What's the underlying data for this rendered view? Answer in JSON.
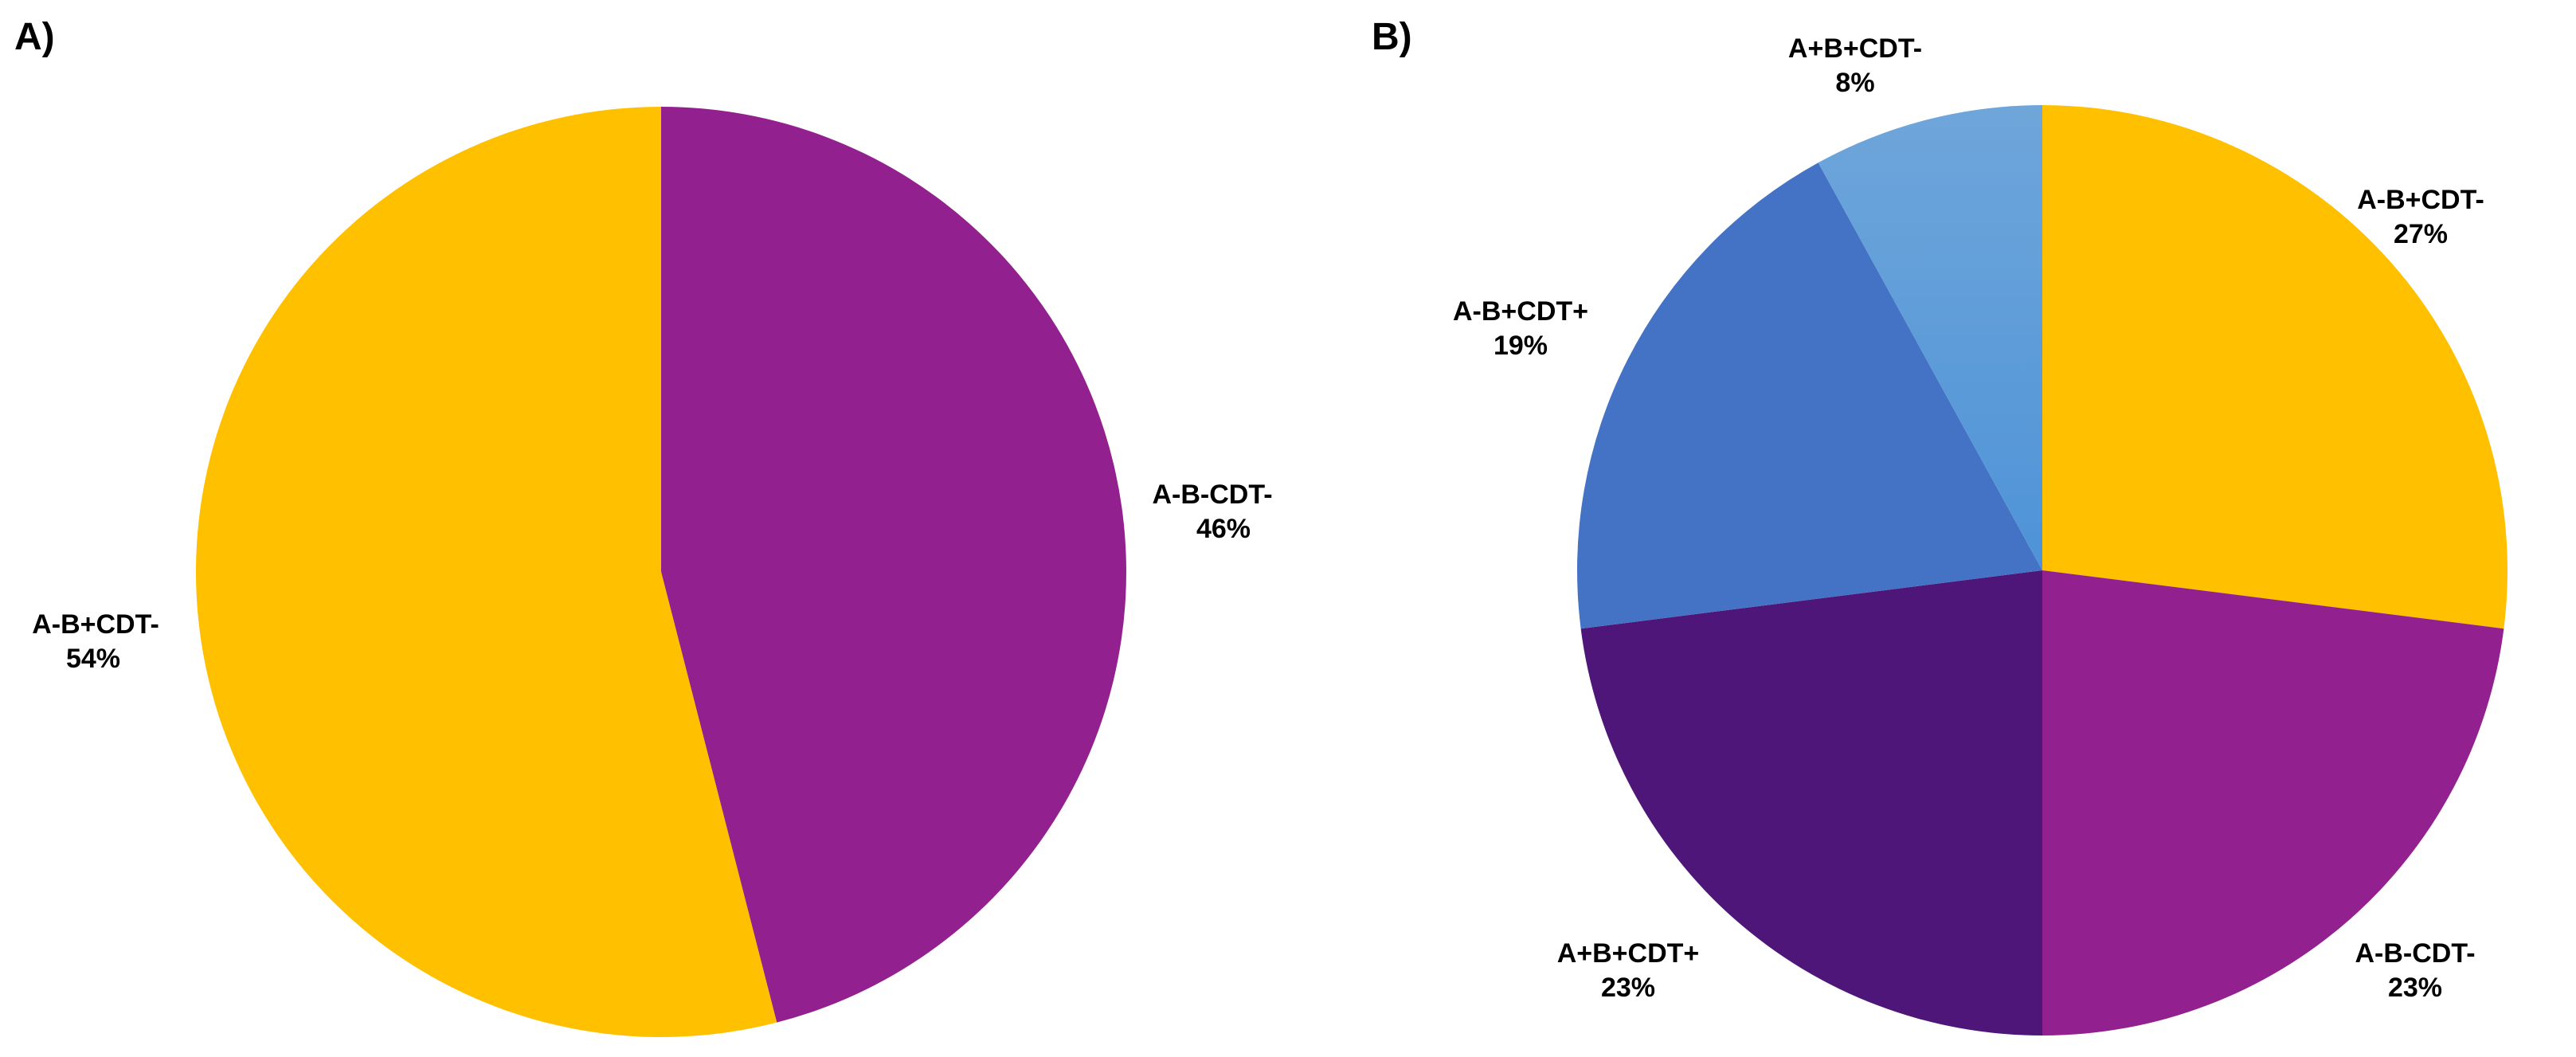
{
  "chart_data": [
    {
      "type": "pie",
      "panel_label": "A)",
      "title": "",
      "start_angle_deg": 0,
      "direction": "clockwise",
      "slices": [
        {
          "label": "A-B-CDT-",
          "value": 46,
          "value_label": "46%",
          "color": "#92208F"
        },
        {
          "label": "A-B+CDT-",
          "value": 54,
          "value_label": "54%",
          "color": "#FFC000"
        }
      ]
    },
    {
      "type": "pie",
      "panel_label": "B)",
      "title": "",
      "start_angle_deg": 0,
      "direction": "clockwise",
      "slices": [
        {
          "label": "A-B+CDT-",
          "value": 27,
          "value_label": "27%",
          "color": "#FFC000"
        },
        {
          "label": "A-B-CDT-",
          "value": 23,
          "value_label": "23%",
          "color": "#92208F"
        },
        {
          "label": "A+B+CDT+",
          "value": 23,
          "value_label": "23%",
          "color": "#4F167A"
        },
        {
          "label": "A-B+CDT+",
          "value": 19,
          "value_label": "19%",
          "color": "#4472C4"
        },
        {
          "label": "A+B+CDT-",
          "value": 8,
          "value_label": "8%",
          "color": "#5B9BD5"
        }
      ]
    }
  ]
}
